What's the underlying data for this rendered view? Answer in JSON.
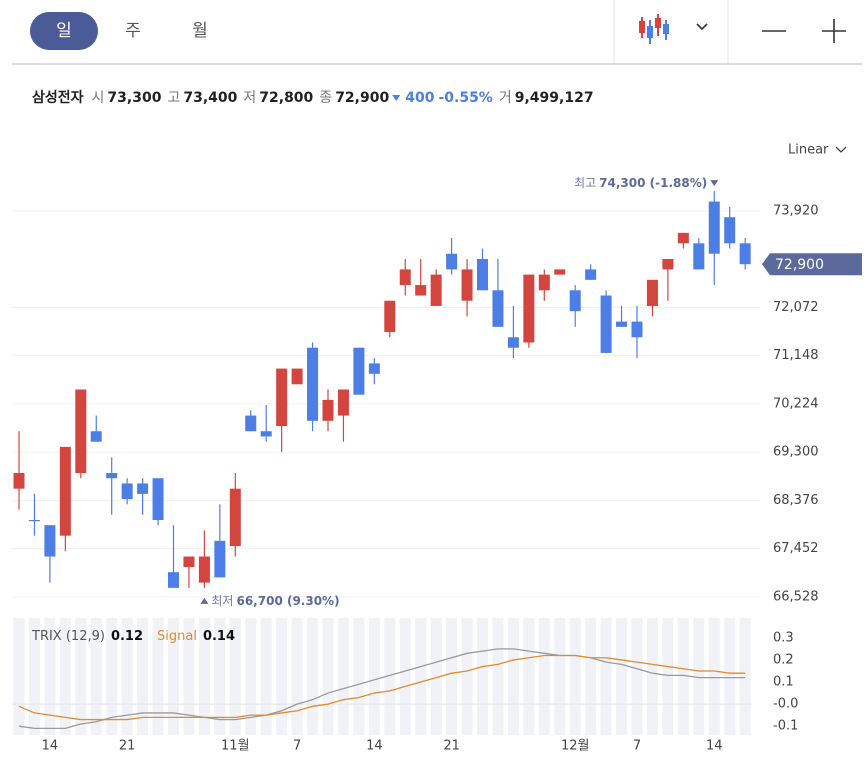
{
  "toolbar": {
    "tabs": [
      "일",
      "주",
      "월"
    ]
  },
  "stock": {
    "name": "삼성전자",
    "fields": [
      {
        "label": "시",
        "value": "73,300"
      },
      {
        "label": "고",
        "value": "73,400"
      },
      {
        "label": "저",
        "value": "72,800"
      },
      {
        "label": "종",
        "value": "72,900"
      }
    ],
    "change": "400",
    "change_pct": "-0.55%",
    "volume_label": "거",
    "volume": "9,499,127"
  },
  "chart_data": [
    {
      "type": "candlestick",
      "scale_label": "Linear",
      "categories": [
        null,
        null,
        "14",
        null,
        null,
        null,
        null,
        "21",
        null,
        null,
        null,
        null,
        null,
        null,
        "11월",
        null,
        null,
        null,
        "7",
        null,
        null,
        null,
        null,
        "14",
        null,
        null,
        null,
        null,
        "21",
        null,
        null,
        null,
        null,
        null,
        null,
        null,
        "12월",
        null,
        null,
        null,
        "7",
        null,
        null,
        null,
        null,
        "14",
        null,
        null
      ],
      "open": [
        68600,
        68000,
        67900,
        67700,
        68900,
        69700,
        68900,
        68700,
        68700,
        68800,
        67000,
        67100,
        66800,
        67600,
        67500,
        70000,
        69700,
        69800,
        70600,
        71300,
        69900,
        70000,
        71300,
        71000,
        71600,
        72500,
        72300,
        72100,
        73100,
        72200,
        73000,
        72400,
        71500,
        71400,
        72400,
        72700,
        72400,
        72800,
        72300,
        71800,
        71800,
        72100,
        72800,
        73300,
        73300,
        74100,
        73800,
        73300
      ],
      "high": [
        69700,
        68500,
        67900,
        69400,
        70500,
        70000,
        69200,
        68800,
        68800,
        68800,
        67900,
        67300,
        67800,
        68300,
        68900,
        70100,
        70200,
        70900,
        70900,
        71400,
        70500,
        70500,
        71300,
        71100,
        72200,
        73000,
        73000,
        72800,
        73400,
        73000,
        73200,
        73000,
        72100,
        72700,
        72800,
        72800,
        72500,
        72900,
        72400,
        72100,
        72100,
        72600,
        73000,
        73500,
        73400,
        74300,
        74000,
        73400
      ],
      "low": [
        68200,
        67700,
        66800,
        67400,
        68800,
        69500,
        68100,
        68300,
        68100,
        67900,
        66700,
        66700,
        66700,
        66900,
        67300,
        69700,
        69500,
        69300,
        70600,
        69700,
        69700,
        69500,
        70400,
        70600,
        71500,
        72300,
        72300,
        72100,
        72700,
        71900,
        72400,
        71700,
        71100,
        71300,
        72200,
        72700,
        71700,
        72600,
        71200,
        71700,
        71100,
        71900,
        72200,
        73200,
        72800,
        72500,
        73200,
        72800
      ],
      "close": [
        68900,
        68000,
        67300,
        69400,
        70500,
        69500,
        68800,
        68400,
        68500,
        68000,
        66700,
        67300,
        67300,
        66900,
        68600,
        69700,
        69600,
        70900,
        70900,
        69900,
        70300,
        70500,
        70400,
        70800,
        72200,
        72800,
        72500,
        72700,
        72800,
        72800,
        72400,
        71700,
        71300,
        72700,
        72700,
        72800,
        72000,
        72600,
        71200,
        71700,
        71500,
        72600,
        73000,
        73500,
        72800,
        73100,
        73300,
        72900
      ],
      "up_color": "#d2463f",
      "down_color": "#4d7ee6",
      "ylim": [
        66180,
        74800
      ],
      "yticks": [
        {
          "value": 66528,
          "label": "66,528"
        },
        {
          "value": 67452,
          "label": "67,452"
        },
        {
          "value": 68376,
          "label": "68,376"
        },
        {
          "value": 69300,
          "label": "69,300"
        },
        {
          "value": 70224,
          "label": "70,224"
        },
        {
          "value": 71148,
          "label": "71,148"
        },
        {
          "value": 72072,
          "label": "72,072"
        },
        {
          "value": 73920,
          "label": "73,920"
        }
      ],
      "grid": true,
      "last_label": {
        "value": 72900,
        "label": "72,900"
      },
      "max_annotation": {
        "label": "최고",
        "text": "74,300 (-1.88%)"
      },
      "min_annotation": {
        "label": "최저",
        "text": "66,700 (9.30%)"
      }
    },
    {
      "type": "line",
      "ylim": [
        -0.14,
        0.39
      ],
      "yticks": [
        -0.1,
        {
          "value": 0,
          "label": "-0.0"
        },
        0.1,
        0.2,
        0.3
      ],
      "series": [
        {
          "name": "TRIX (12,9)",
          "color": "#9a9a9a",
          "values": [
            -0.1,
            -0.11,
            -0.11,
            -0.11,
            -0.09,
            -0.08,
            -0.06,
            -0.05,
            -0.04,
            -0.04,
            -0.04,
            -0.05,
            -0.06,
            -0.07,
            -0.07,
            -0.06,
            -0.05,
            -0.03,
            0.0,
            0.02,
            0.05,
            0.07,
            0.09,
            0.11,
            0.13,
            0.15,
            0.17,
            0.19,
            0.21,
            0.23,
            0.24,
            0.25,
            0.25,
            0.24,
            0.23,
            0.22,
            0.22,
            0.21,
            0.19,
            0.18,
            0.16,
            0.14,
            0.13,
            0.13,
            0.12,
            0.12,
            0.12,
            0.12
          ]
        },
        {
          "name": "Signal",
          "color": "#e5892c",
          "values": [
            -0.01,
            -0.04,
            -0.05,
            -0.06,
            -0.07,
            -0.07,
            -0.07,
            -0.07,
            -0.06,
            -0.06,
            -0.06,
            -0.06,
            -0.06,
            -0.06,
            -0.06,
            -0.05,
            -0.05,
            -0.04,
            -0.03,
            -0.01,
            0.0,
            0.02,
            0.03,
            0.05,
            0.06,
            0.08,
            0.1,
            0.12,
            0.14,
            0.15,
            0.17,
            0.18,
            0.2,
            0.21,
            0.22,
            0.22,
            0.22,
            0.21,
            0.21,
            0.2,
            0.19,
            0.18,
            0.17,
            0.16,
            0.15,
            0.15,
            0.14,
            0.14
          ]
        }
      ]
    }
  ]
}
